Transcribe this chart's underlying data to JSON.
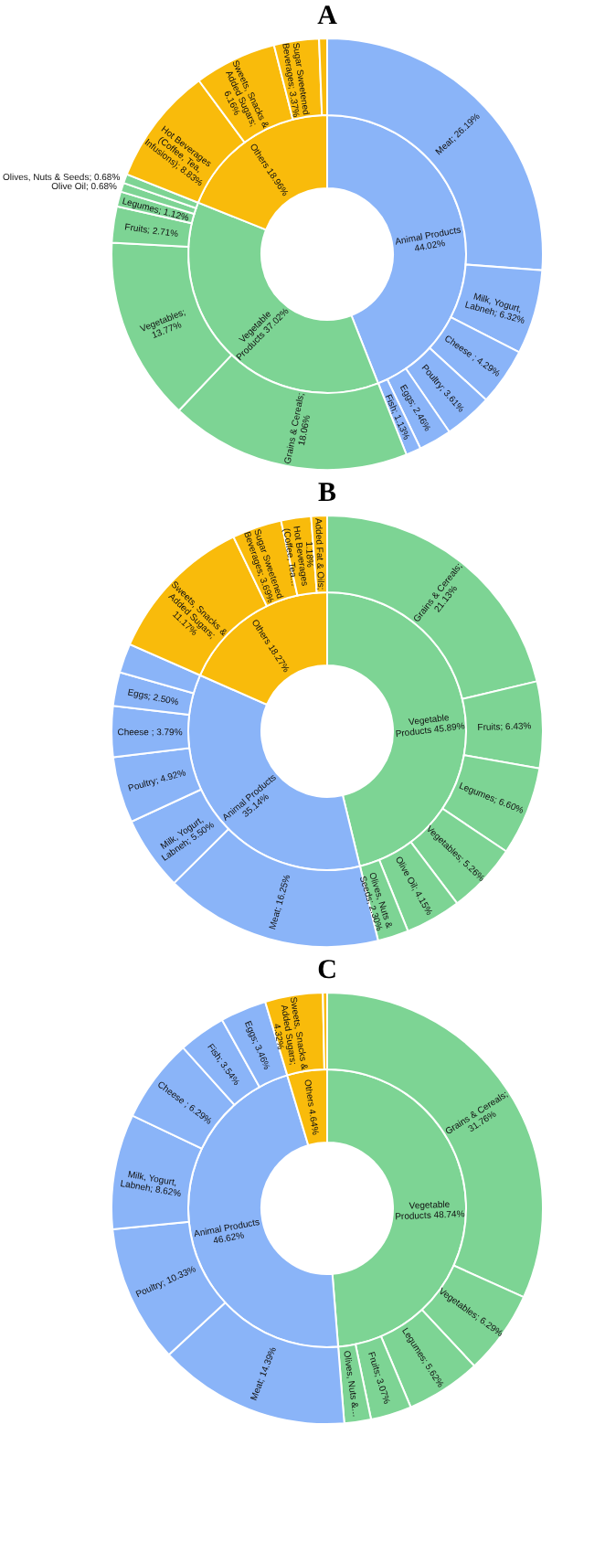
{
  "chart_data": [
    {
      "type": "donut",
      "title": "A",
      "series": [
        {
          "value_labels": [
            "Animal Products 44.02%",
            "Vegetable Products 37.02%",
            "Others 18.96%"
          ],
          "values": [
            44.02,
            37.02,
            18.96
          ],
          "colors": [
            "#8ab4f8",
            "#7dd494",
            "#f9bb0b"
          ]
        },
        {
          "value_labels": [
            "Meat; 26.19%",
            "Milk, Yogurt, Labneh; 6.32%",
            "Cheese ; 4.29%",
            "Poultry; 3.61%",
            "Eggs; 2.46%",
            "Fish; 1.13%",
            "Grains & Cereals; 18.06%",
            "Vegetables; 13.77%",
            "Fruits; 2.71%",
            "Legumes; 1.12%",
            "Olive Oil; 0.68%",
            "Olives, Nuts & Seeds; 0.68%",
            "Hot Beverages (Coffee, Tea, Infusions); 8.83%",
            "Sweets, Snacks & Added Sugars; 6.16%",
            "Sugar Sweetened Beverages; 3.37%",
            null
          ],
          "values": [
            26.19,
            6.32,
            4.29,
            3.61,
            2.46,
            1.13,
            18.06,
            13.77,
            2.71,
            1.12,
            0.68,
            0.68,
            8.83,
            6.16,
            3.37,
            0.6
          ],
          "colors": [
            "#8ab4f8",
            "#8ab4f8",
            "#8ab4f8",
            "#8ab4f8",
            "#8ab4f8",
            "#8ab4f8",
            "#7dd494",
            "#7dd494",
            "#7dd494",
            "#7dd494",
            "#7dd494",
            "#7dd494",
            "#f9bb0b",
            "#f9bb0b",
            "#f9bb0b",
            "#f9bb0b"
          ]
        }
      ]
    },
    {
      "type": "donut",
      "title": "B",
      "series": [
        {
          "value_labels": [
            "Vegetable Products 45.89%",
            "Animal Products 35.14%",
            "Others 18.27%"
          ],
          "values": [
            45.89,
            35.14,
            18.27
          ],
          "colors": [
            "#7dd494",
            "#8ab4f8",
            "#f9bb0b"
          ]
        },
        {
          "value_labels": [
            "Grains & Cereals; 21.13%",
            "Fruits; 6.43%",
            "Legumes; 6.60%",
            "Vegetables; 5.26%",
            "Olive Oil; 4.15%",
            "Olives, Nuts & Seeds; 2.30%",
            "Meat; 16.25%",
            "Milk, Yogurt, Labneh; 5.50%",
            "Poultry; 4.92%",
            "Cheese ; 3.79%",
            "Eggs; 2.50%",
            null,
            "Sweets, Snacks & Added Sugars; 11.17%",
            "Sugar Sweetened Beverages; 3.69%",
            "Hot Beverages (Coffee, Tea…",
            "Added Fat & Oils; 1.18%"
          ],
          "values": [
            21.13,
            6.43,
            6.6,
            5.26,
            4.15,
            2.3,
            16.25,
            5.5,
            4.92,
            3.79,
            2.5,
            2.18,
            11.17,
            3.69,
            2.23,
            1.18
          ],
          "colors": [
            "#7dd494",
            "#7dd494",
            "#7dd494",
            "#7dd494",
            "#7dd494",
            "#7dd494",
            "#8ab4f8",
            "#8ab4f8",
            "#8ab4f8",
            "#8ab4f8",
            "#8ab4f8",
            "#8ab4f8",
            "#f9bb0b",
            "#f9bb0b",
            "#f9bb0b",
            "#f9bb0b"
          ]
        }
      ]
    },
    {
      "type": "donut",
      "title": "C",
      "series": [
        {
          "value_labels": [
            "Vegetable Products 48.74%",
            "Animal Products 46.62%",
            "Others 4.64%"
          ],
          "values": [
            48.74,
            46.62,
            4.64
          ],
          "colors": [
            "#7dd494",
            "#8ab4f8",
            "#f9bb0b"
          ]
        },
        {
          "value_labels": [
            "Grains & Cereals; 31.76%",
            "Vegetables; 6.29%",
            "Legumes; 5.62%",
            "Fruits; 3.07%",
            "Olives, Nuts &…",
            "Meat; 14.39%",
            "Poultry; 10.33%",
            "Milk, Yogurt, Labneh; 8.62%",
            "Cheese ; 6.29%",
            "Fish; 3.54%",
            "Eggs; 3.46%",
            "Sweets, Snacks & Added Sugars; 4.32%",
            null
          ],
          "values": [
            31.76,
            6.29,
            5.62,
            3.07,
            2.0,
            14.39,
            10.33,
            8.62,
            6.29,
            3.54,
            3.46,
            4.32,
            0.32
          ],
          "colors": [
            "#7dd494",
            "#7dd494",
            "#7dd494",
            "#7dd494",
            "#7dd494",
            "#8ab4f8",
            "#8ab4f8",
            "#8ab4f8",
            "#8ab4f8",
            "#8ab4f8",
            "#8ab4f8",
            "#f9bb0b",
            "#f9bb0b"
          ]
        }
      ]
    }
  ]
}
